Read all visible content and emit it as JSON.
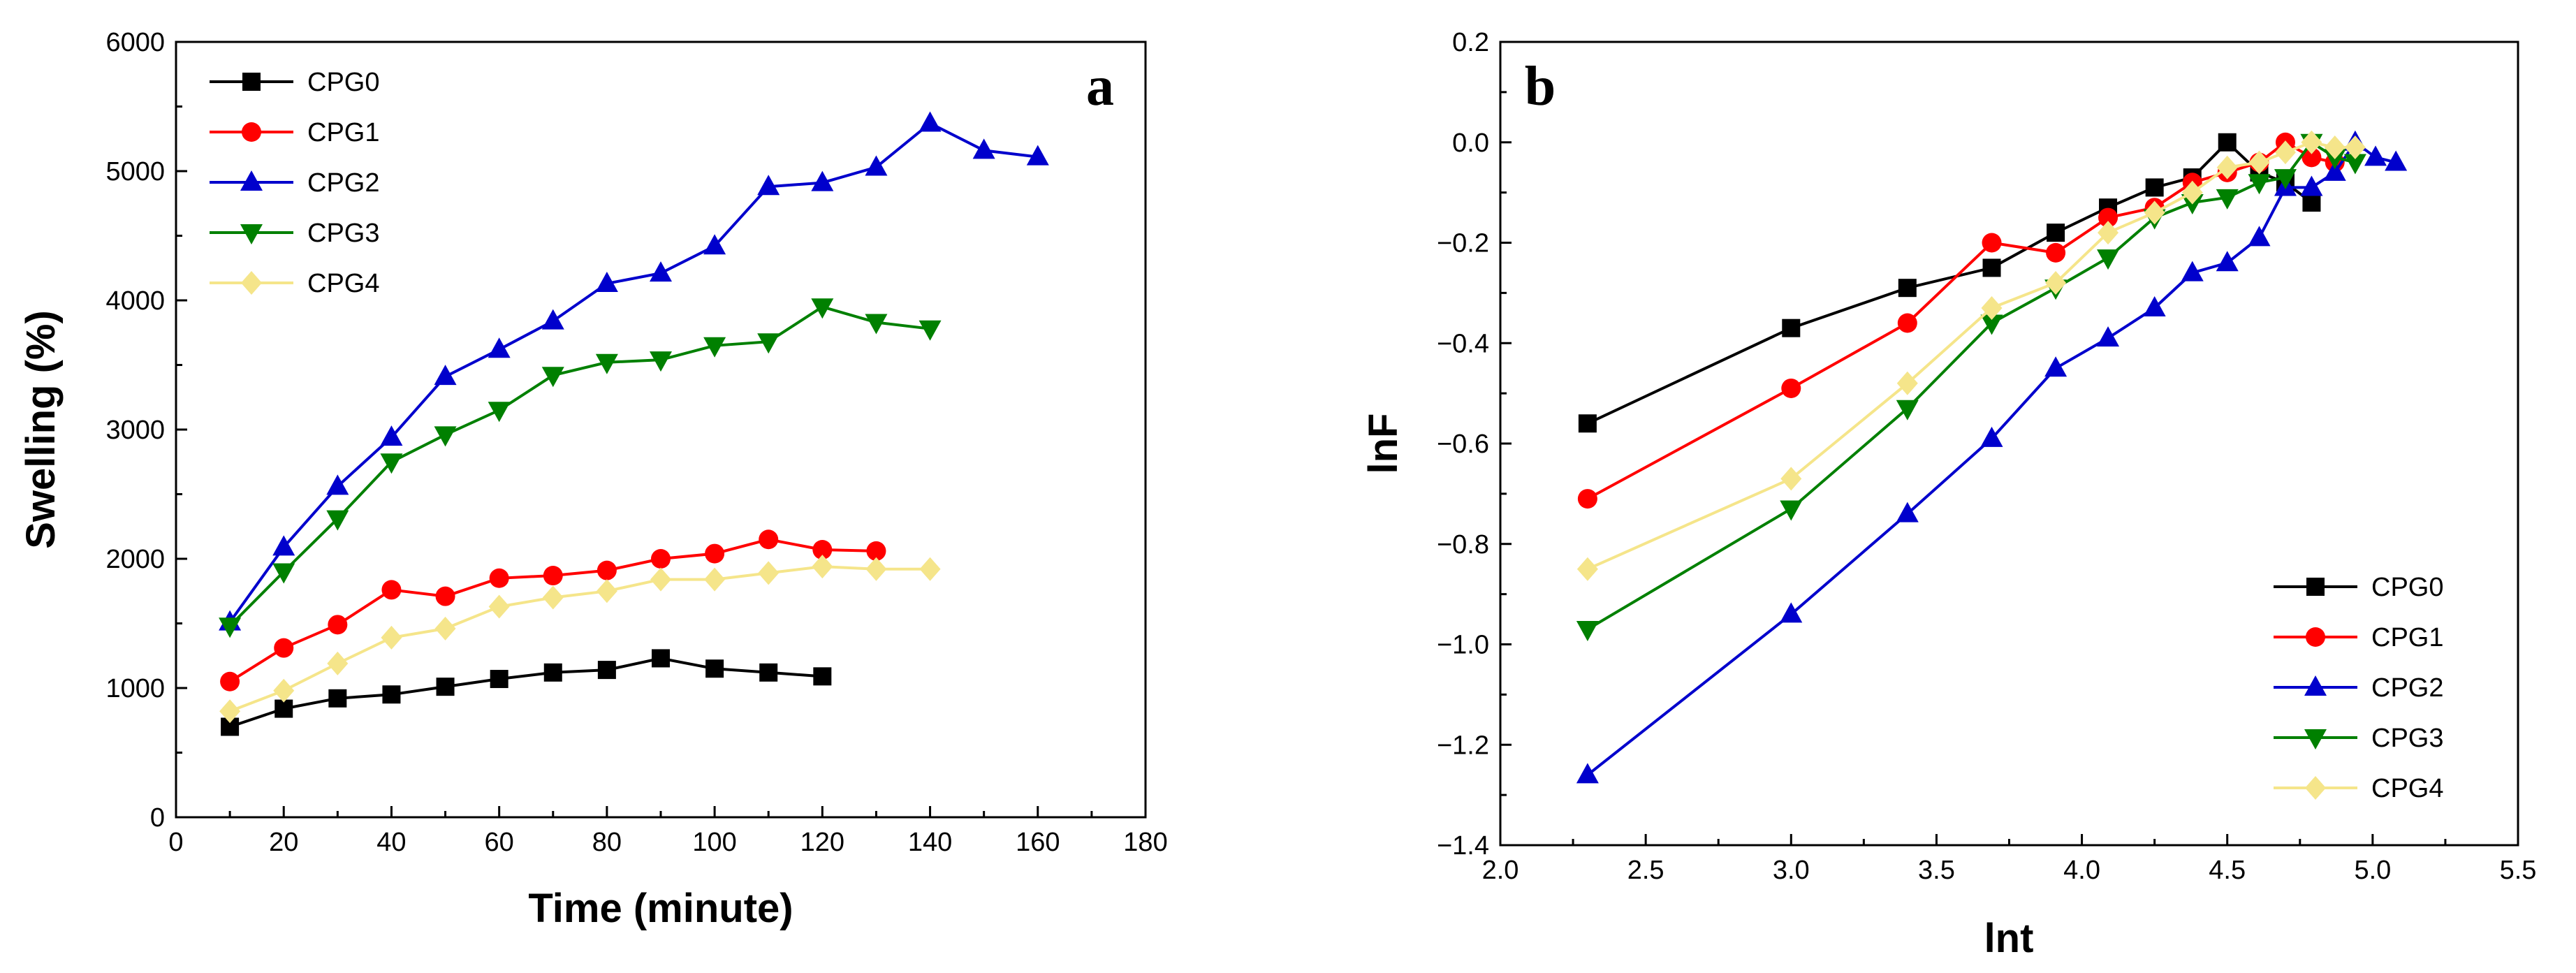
{
  "chart_data": [
    {
      "type": "line",
      "panel_label": "a",
      "xlabel": "Time (minute)",
      "ylabel": "Swelling (%)",
      "xlim": [
        0,
        180
      ],
      "ylim": [
        0,
        6000
      ],
      "xticks": [
        "0",
        "20",
        "40",
        "60",
        "80",
        "100",
        "120",
        "140",
        "160",
        "180"
      ],
      "yticks": [
        "0",
        "1000",
        "2000",
        "3000",
        "4000",
        "5000",
        "6000"
      ],
      "grid": false,
      "legend_position": "top-left",
      "series": [
        {
          "name": "CPG0",
          "color": "#000000",
          "marker": "square",
          "x": [
            10,
            20,
            30,
            40,
            50,
            60,
            70,
            80,
            90,
            100,
            110,
            120
          ],
          "y": [
            700,
            840,
            920,
            950,
            1010,
            1070,
            1120,
            1140,
            1230,
            1150,
            1120,
            1090
          ]
        },
        {
          "name": "CPG1",
          "color": "#ff0000",
          "marker": "circle",
          "x": [
            10,
            20,
            30,
            40,
            50,
            60,
            70,
            80,
            90,
            100,
            110,
            120,
            130
          ],
          "y": [
            1050,
            1310,
            1490,
            1760,
            1710,
            1850,
            1870,
            1910,
            2000,
            2040,
            2150,
            2070,
            2060
          ]
        },
        {
          "name": "CPG2",
          "color": "#0000cc",
          "marker": "triangle-up",
          "x": [
            10,
            20,
            30,
            40,
            50,
            60,
            70,
            80,
            90,
            100,
            110,
            120,
            130,
            140,
            150,
            160
          ],
          "y": [
            1510,
            2090,
            2560,
            2940,
            3410,
            3620,
            3840,
            4130,
            4210,
            4420,
            4880,
            4910,
            5030,
            5370,
            5160,
            5110
          ]
        },
        {
          "name": "CPG3",
          "color": "#008000",
          "marker": "triangle-down",
          "x": [
            10,
            20,
            30,
            40,
            50,
            60,
            70,
            80,
            90,
            100,
            110,
            120,
            130,
            140
          ],
          "y": [
            1480,
            1900,
            2310,
            2750,
            2960,
            3150,
            3420,
            3520,
            3540,
            3650,
            3680,
            3950,
            3830,
            3780
          ]
        },
        {
          "name": "CPG4",
          "color": "#f5e58a",
          "marker": "diamond",
          "x": [
            10,
            20,
            30,
            40,
            50,
            60,
            70,
            80,
            90,
            100,
            110,
            120,
            130,
            140
          ],
          "y": [
            820,
            980,
            1190,
            1390,
            1460,
            1630,
            1700,
            1750,
            1840,
            1840,
            1890,
            1940,
            1920,
            1920
          ]
        }
      ]
    },
    {
      "type": "line",
      "panel_label": "b",
      "xlabel": "lnt",
      "ylabel": "lnF",
      "xlim": [
        2.0,
        5.5
      ],
      "ylim": [
        -1.4,
        0.2
      ],
      "xticks": [
        "2.0",
        "2.5",
        "3.0",
        "3.5",
        "4.0",
        "4.5",
        "5.0",
        "5.5"
      ],
      "yticks": [
        "−1.4",
        "−1.2",
        "−1.0",
        "−0.8",
        "−0.6",
        "−0.4",
        "−0.2",
        "0.0",
        "0.2"
      ],
      "grid": false,
      "legend_position": "bottom-right",
      "series": [
        {
          "name": "CPG0",
          "color": "#000000",
          "marker": "square",
          "x": [
            2.3,
            3.0,
            3.4,
            3.69,
            3.91,
            4.09,
            4.25,
            4.38,
            4.5,
            4.61,
            4.7,
            4.79
          ],
          "y": [
            -0.56,
            -0.37,
            -0.29,
            -0.25,
            -0.18,
            -0.13,
            -0.09,
            -0.07,
            0.0,
            -0.06,
            -0.08,
            -0.12
          ]
        },
        {
          "name": "CPG1",
          "color": "#ff0000",
          "marker": "circle",
          "x": [
            2.3,
            3.0,
            3.4,
            3.69,
            3.91,
            4.09,
            4.25,
            4.38,
            4.5,
            4.61,
            4.7,
            4.79,
            4.87
          ],
          "y": [
            -0.71,
            -0.49,
            -0.36,
            -0.2,
            -0.22,
            -0.15,
            -0.13,
            -0.08,
            -0.06,
            -0.04,
            0.0,
            -0.03,
            -0.04
          ]
        },
        {
          "name": "CPG2",
          "color": "#0000cc",
          "marker": "triangle-up",
          "x": [
            2.3,
            3.0,
            3.4,
            3.69,
            3.91,
            4.09,
            4.25,
            4.38,
            4.5,
            4.61,
            4.7,
            4.79,
            4.87,
            4.94,
            5.01,
            5.08
          ],
          "y": [
            -1.26,
            -0.94,
            -0.74,
            -0.59,
            -0.45,
            -0.39,
            -0.33,
            -0.26,
            -0.24,
            -0.19,
            -0.09,
            -0.09,
            -0.06,
            0.0,
            -0.03,
            -0.04
          ]
        },
        {
          "name": "CPG3",
          "color": "#008000",
          "marker": "triangle-down",
          "x": [
            2.3,
            3.0,
            3.4,
            3.69,
            3.91,
            4.09,
            4.25,
            4.38,
            4.5,
            4.61,
            4.7,
            4.79,
            4.87,
            4.94
          ],
          "y": [
            -0.97,
            -0.73,
            -0.53,
            -0.36,
            -0.29,
            -0.23,
            -0.15,
            -0.12,
            -0.11,
            -0.08,
            -0.07,
            0.0,
            -0.03,
            -0.04
          ]
        },
        {
          "name": "CPG4",
          "color": "#f5e58a",
          "marker": "diamond",
          "x": [
            2.3,
            3.0,
            3.4,
            3.69,
            3.91,
            4.09,
            4.25,
            4.38,
            4.5,
            4.61,
            4.7,
            4.79,
            4.87,
            4.94
          ],
          "y": [
            -0.85,
            -0.67,
            -0.48,
            -0.33,
            -0.28,
            -0.18,
            -0.14,
            -0.1,
            -0.05,
            -0.04,
            -0.02,
            0.0,
            -0.01,
            -0.01
          ]
        }
      ]
    }
  ]
}
